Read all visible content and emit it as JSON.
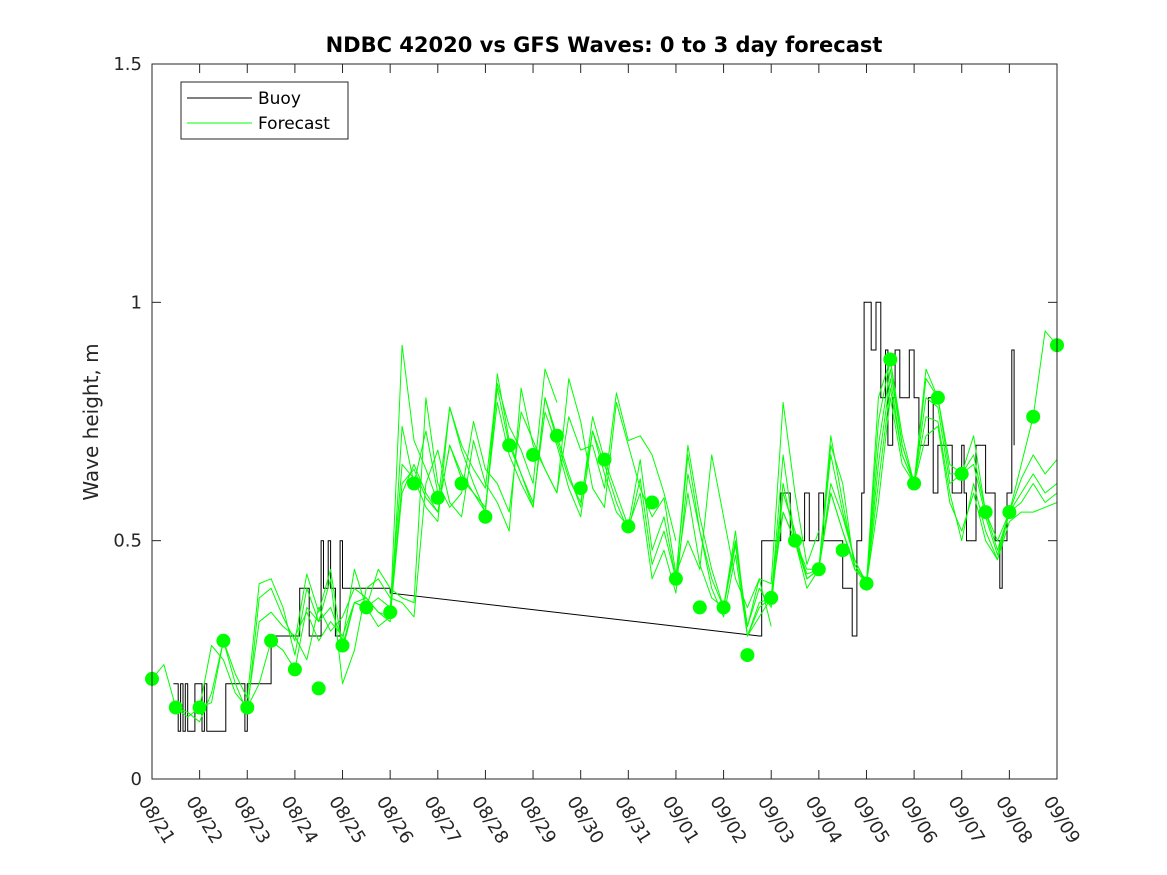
{
  "chart_data": {
    "type": "line",
    "title": "NDBC 42020 vs GFS Waves: 0 to 3 day forecast",
    "xlabel": "",
    "ylabel": "Wave height, m",
    "xlim": [
      0,
      19
    ],
    "ylim": [
      0,
      1.5
    ],
    "x_tick_labels": [
      "08/21",
      "08/22",
      "08/23",
      "08/24",
      "08/25",
      "08/26",
      "08/27",
      "08/28",
      "08/29",
      "08/30",
      "08/31",
      "09/01",
      "09/02",
      "09/03",
      "09/04",
      "09/05",
      "09/06",
      "09/07",
      "09/08",
      "09/09"
    ],
    "y_ticks": [
      0,
      0.5,
      1,
      1.5
    ],
    "y_tick_labels": [
      "0",
      "0.5",
      "1",
      "1.5"
    ],
    "legend": {
      "position": "top-left",
      "entries": [
        "Buoy",
        "Forecast"
      ]
    },
    "colors": {
      "buoy": "#000000",
      "forecast": "#00ff00",
      "axis": "#262626"
    },
    "buoy": {
      "name": "Buoy",
      "x": [
        0.45,
        0.5,
        0.55,
        0.6,
        0.65,
        0.7,
        0.75,
        0.8,
        0.85,
        0.9,
        1.0,
        1.05,
        1.1,
        1.15,
        1.2,
        1.25,
        1.5,
        1.55,
        1.9,
        1.95,
        2.0,
        2.05,
        2.1,
        2.5,
        2.6,
        2.8,
        3.0,
        3.1,
        3.2,
        3.3,
        3.5,
        3.55,
        3.6,
        3.7,
        3.75,
        3.8,
        3.85,
        3.9,
        3.95,
        4.0,
        4.1,
        4.2,
        4.3,
        4.5,
        4.8,
        5.0,
        12.75,
        12.8,
        13.0,
        13.2,
        13.3,
        13.4,
        13.5,
        13.6,
        13.7,
        13.8,
        13.9,
        14.0,
        14.05,
        14.1,
        14.3,
        14.5,
        14.6,
        14.7,
        14.75,
        14.8,
        14.9,
        14.95,
        15.0,
        15.1,
        15.15,
        15.2,
        15.3,
        15.35,
        15.4,
        15.45,
        15.5,
        15.55,
        15.6,
        15.65,
        15.7,
        15.8,
        15.9,
        16.0,
        16.1,
        16.2,
        16.3,
        16.4,
        16.5,
        16.6,
        16.7,
        16.8,
        16.9,
        17.0,
        17.05,
        17.1,
        17.2,
        17.3,
        17.4,
        17.5,
        17.6,
        17.7,
        17.75,
        17.8,
        17.85,
        17.9,
        17.95,
        18.0,
        18.05,
        18.1
      ],
      "values": [
        0.2,
        0.2,
        0.1,
        0.2,
        0.1,
        0.2,
        0.1,
        0.1,
        0.1,
        0.2,
        0.2,
        0.1,
        0.2,
        0.1,
        0.1,
        0.1,
        0.1,
        0.2,
        0.2,
        0.1,
        0.2,
        0.2,
        0.2,
        0.3,
        0.3,
        0.3,
        0.3,
        0.4,
        0.4,
        0.3,
        0.3,
        0.5,
        0.4,
        0.5,
        0.4,
        0.4,
        0.3,
        0.3,
        0.5,
        0.4,
        0.4,
        0.4,
        0.4,
        0.4,
        0.4,
        0.39,
        0.3,
        0.5,
        0.5,
        0.6,
        0.6,
        0.5,
        0.5,
        0.5,
        0.6,
        0.5,
        0.5,
        0.6,
        0.6,
        0.5,
        0.5,
        0.4,
        0.4,
        0.3,
        0.3,
        0.5,
        0.6,
        1.0,
        1.0,
        0.9,
        0.9,
        1.0,
        0.8,
        0.8,
        0.9,
        0.7,
        0.7,
        0.8,
        0.9,
        0.9,
        0.8,
        0.8,
        0.9,
        0.8,
        0.7,
        0.7,
        0.8,
        0.6,
        0.7,
        0.7,
        0.7,
        0.6,
        0.6,
        0.7,
        0.6,
        0.5,
        0.5,
        0.7,
        0.7,
        0.6,
        0.6,
        0.5,
        0.5,
        0.4,
        0.5,
        0.5,
        0.6,
        0.6,
        0.9,
        0.7
      ]
    },
    "forecast_series": [
      {
        "name": "Forecast",
        "x": [
          0.0,
          0.25,
          0.5,
          0.75,
          1.0,
          1.25,
          1.5,
          1.75,
          2.0,
          2.25,
          2.5,
          2.75,
          3.0,
          3.25,
          3.5,
          3.75,
          4.0,
          4.25,
          4.5,
          4.75,
          5.0,
          5.25,
          5.5,
          5.75,
          6.0
        ],
        "values": [
          0.21,
          0.24,
          0.15,
          0.13,
          0.15,
          0.28,
          0.25,
          0.18,
          0.15,
          0.33,
          0.35,
          0.32,
          0.3,
          0.35,
          0.29,
          0.33,
          0.3,
          0.37,
          0.38,
          0.35,
          0.33,
          0.74,
          0.62,
          0.73,
          0.6
        ]
      },
      {
        "name": "Forecast",
        "x": [
          0.5,
          0.75,
          1.0,
          1.25,
          1.5,
          1.75,
          2.0,
          2.25,
          2.5,
          2.75,
          3.0,
          3.25,
          3.5,
          3.75,
          4.0,
          4.25,
          4.5,
          4.75,
          5.0,
          5.25,
          5.5,
          5.75,
          6.0,
          6.25,
          6.5,
          6.75,
          7.0,
          7.25,
          7.5,
          7.75,
          8.0,
          8.25,
          8.5
        ],
        "values": [
          0.15,
          0.14,
          0.12,
          0.18,
          0.29,
          0.22,
          0.17,
          0.41,
          0.42,
          0.36,
          0.26,
          0.4,
          0.33,
          0.36,
          0.29,
          0.44,
          0.36,
          0.32,
          0.34,
          0.91,
          0.71,
          0.65,
          0.58,
          0.78,
          0.7,
          0.65,
          0.61,
          0.83,
          0.74,
          0.69,
          0.62,
          0.86,
          0.79
        ]
      },
      {
        "name": "Forecast",
        "x": [
          1.0,
          1.25,
          1.5,
          1.75,
          2.0,
          2.25,
          2.5,
          2.75,
          3.0,
          3.25,
          3.5,
          3.75,
          4.0,
          4.25,
          4.5,
          4.75,
          5.0,
          5.25,
          5.5,
          5.75,
          6.0,
          6.25,
          6.5,
          6.75,
          7.0,
          7.25,
          7.5,
          7.75,
          8.0,
          8.25,
          8.5,
          8.75,
          9.0,
          9.25,
          9.5,
          9.75,
          10.0,
          10.25,
          10.5,
          10.75,
          11.0
        ],
        "values": [
          0.15,
          0.16,
          0.29,
          0.2,
          0.14,
          0.38,
          0.4,
          0.34,
          0.29,
          0.43,
          0.35,
          0.44,
          0.27,
          0.37,
          0.36,
          0.44,
          0.4,
          0.38,
          0.37,
          0.8,
          0.62,
          0.57,
          0.6,
          0.75,
          0.65,
          0.62,
          0.56,
          0.77,
          0.71,
          0.65,
          0.6,
          0.76,
          0.69,
          0.7,
          0.61,
          0.81,
          0.71,
          0.72,
          0.68,
          0.6,
          0.5
        ]
      },
      {
        "name": "Forecast",
        "x": [
          2.0,
          2.25,
          2.5,
          2.75,
          3.0,
          3.25,
          3.5,
          3.75,
          4.0,
          4.25,
          4.5,
          4.75,
          5.0,
          5.25,
          5.5,
          5.75,
          6.0,
          6.25,
          6.5,
          6.75,
          7.0,
          7.25,
          7.5,
          7.75,
          8.0,
          8.25,
          8.5,
          8.75,
          9.0,
          9.25,
          9.5,
          9.75,
          10.0,
          10.25,
          10.5,
          10.75,
          11.0,
          11.25,
          11.5,
          11.75,
          12.0,
          12.25,
          12.5,
          12.75,
          13.0
        ],
        "values": [
          0.15,
          0.2,
          0.29,
          0.27,
          0.23,
          0.36,
          0.33,
          0.42,
          0.2,
          0.27,
          0.4,
          0.42,
          0.38,
          0.37,
          0.34,
          0.62,
          0.69,
          0.58,
          0.55,
          0.71,
          0.62,
          0.58,
          0.52,
          0.82,
          0.7,
          0.65,
          0.6,
          0.84,
          0.75,
          0.61,
          0.57,
          0.79,
          0.7,
          0.61,
          0.55,
          0.59,
          0.43,
          0.5,
          0.44,
          0.68,
          0.55,
          0.42,
          0.36,
          0.42,
          0.32
        ]
      },
      {
        "name": "Forecast",
        "x": [
          3.0,
          3.25,
          3.5,
          3.75,
          4.0,
          4.25,
          4.5,
          4.75,
          5.0,
          5.25,
          5.5,
          5.75,
          6.0,
          6.25,
          6.5,
          6.75,
          7.0,
          7.25,
          7.5,
          7.75,
          8.0,
          8.25,
          8.5,
          8.75,
          9.0,
          9.25,
          9.5,
          9.75,
          10.0,
          10.25,
          10.5,
          10.75,
          11.0,
          11.25,
          11.5,
          11.75,
          12.0,
          12.25,
          12.5,
          12.75,
          13.0,
          13.25,
          13.5,
          13.75,
          14.0
        ],
        "values": [
          0.3,
          0.25,
          0.36,
          0.31,
          0.34,
          0.4,
          0.38,
          0.35,
          0.34,
          0.6,
          0.66,
          0.6,
          0.56,
          0.7,
          0.63,
          0.6,
          0.57,
          0.79,
          0.68,
          0.62,
          0.57,
          0.8,
          0.71,
          0.63,
          0.58,
          0.73,
          0.64,
          0.56,
          0.53,
          0.6,
          0.42,
          0.48,
          0.39,
          0.64,
          0.52,
          0.42,
          0.36,
          0.5,
          0.32,
          0.42,
          0.41,
          0.79,
          0.6,
          0.45,
          0.52
        ]
      },
      {
        "name": "Forecast",
        "x": [
          4.0,
          4.25,
          4.5,
          4.75,
          5.0,
          5.25,
          5.5,
          5.75,
          6.0,
          6.25,
          6.5,
          6.75,
          7.0,
          7.25,
          7.5,
          7.75,
          8.0,
          8.25,
          8.5,
          8.75,
          9.0,
          9.25,
          9.5,
          9.75,
          10.0,
          10.25,
          10.5,
          10.75,
          11.0,
          11.25,
          11.5,
          11.75,
          12.0,
          12.25,
          12.5,
          12.75,
          13.0,
          13.25,
          13.5,
          13.75,
          14.0,
          14.25,
          14.5,
          14.75,
          15.0
        ],
        "values": [
          0.28,
          0.37,
          0.36,
          0.38,
          0.36,
          0.66,
          0.63,
          0.57,
          0.54,
          0.78,
          0.69,
          0.62,
          0.56,
          0.85,
          0.71,
          0.64,
          0.58,
          0.77,
          0.7,
          0.61,
          0.55,
          0.73,
          0.66,
          0.58,
          0.52,
          0.63,
          0.45,
          0.52,
          0.42,
          0.68,
          0.52,
          0.4,
          0.34,
          0.47,
          0.3,
          0.37,
          0.38,
          0.56,
          0.5,
          0.4,
          0.44,
          0.6,
          0.52,
          0.44,
          0.42
        ]
      },
      {
        "name": "Forecast",
        "x": [
          5.0,
          5.25,
          5.5,
          5.75,
          6.0,
          6.25,
          6.5,
          6.75,
          7.0,
          7.25,
          7.5,
          7.75,
          8.0,
          8.25,
          8.5,
          8.75,
          9.0,
          9.25,
          9.5,
          9.75,
          10.0,
          10.25,
          10.5,
          10.75,
          11.0,
          11.25,
          11.5,
          11.75,
          12.0,
          12.25,
          12.5,
          12.75,
          13.0,
          13.25,
          13.5,
          13.75,
          14.0,
          14.25,
          14.5,
          14.75,
          15.0,
          15.25,
          15.5,
          15.75,
          16.0
        ],
        "values": [
          0.35,
          0.62,
          0.65,
          0.59,
          0.56,
          0.7,
          0.64,
          0.6,
          0.56,
          0.82,
          0.7,
          0.64,
          0.57,
          0.8,
          0.72,
          0.64,
          0.57,
          0.76,
          0.67,
          0.6,
          0.53,
          0.67,
          0.48,
          0.55,
          0.42,
          0.7,
          0.55,
          0.44,
          0.36,
          0.49,
          0.32,
          0.4,
          0.36,
          0.6,
          0.52,
          0.42,
          0.44,
          0.7,
          0.62,
          0.44,
          0.41,
          0.8,
          0.88,
          0.72,
          0.62
        ]
      },
      {
        "name": "Forecast",
        "x": [
          11.0,
          11.25,
          11.5,
          11.75,
          12.0,
          12.25,
          12.5,
          12.75,
          13.0,
          13.25,
          13.5,
          13.75,
          14.0,
          14.25,
          14.5,
          14.75,
          15.0,
          15.25,
          15.5,
          15.75,
          16.0,
          16.25,
          16.5,
          16.75,
          17.0,
          17.25,
          17.5,
          17.75,
          18.0,
          18.25,
          18.5,
          18.75,
          19.0
        ],
        "values": [
          0.42,
          0.6,
          0.45,
          0.38,
          0.36,
          0.52,
          0.3,
          0.36,
          0.38,
          0.68,
          0.5,
          0.42,
          0.44,
          0.72,
          0.58,
          0.45,
          0.41,
          0.75,
          0.88,
          0.7,
          0.62,
          0.86,
          0.8,
          0.66,
          0.64,
          0.72,
          0.56,
          0.5,
          0.56,
          0.66,
          0.76,
          0.94,
          0.91
        ]
      },
      {
        "name": "Forecast",
        "x": [
          12.0,
          12.25,
          12.5,
          12.75,
          13.0,
          13.25,
          13.5,
          13.75,
          14.0,
          14.25,
          14.5,
          14.75,
          15.0,
          15.25,
          15.5,
          15.75,
          16.0,
          16.25,
          16.5,
          16.75,
          17.0,
          17.25,
          17.5,
          17.75,
          18.0,
          18.25,
          18.5,
          18.75,
          19.0
        ],
        "values": [
          0.36,
          0.5,
          0.3,
          0.34,
          0.38,
          0.62,
          0.5,
          0.43,
          0.44,
          0.68,
          0.56,
          0.46,
          0.41,
          0.7,
          0.86,
          0.7,
          0.62,
          0.84,
          0.8,
          0.64,
          0.64,
          0.68,
          0.56,
          0.48,
          0.56,
          0.63,
          0.68,
          0.64,
          0.67
        ]
      },
      {
        "name": "Forecast",
        "x": [
          13.0,
          13.25,
          13.5,
          13.75,
          14.0,
          14.25,
          14.5,
          14.75,
          15.0,
          15.25,
          15.5,
          15.75,
          16.0,
          16.25,
          16.5,
          16.75,
          17.0,
          17.25,
          17.5,
          17.75,
          18.0,
          18.25,
          18.5,
          18.75,
          19.0
        ],
        "values": [
          0.38,
          0.56,
          0.5,
          0.44,
          0.44,
          0.62,
          0.55,
          0.46,
          0.41,
          0.66,
          0.84,
          0.68,
          0.62,
          0.8,
          0.78,
          0.62,
          0.64,
          0.66,
          0.55,
          0.47,
          0.56,
          0.6,
          0.64,
          0.6,
          0.62
        ]
      },
      {
        "name": "Forecast",
        "x": [
          14.0,
          14.25,
          14.5,
          14.75,
          15.0,
          15.25,
          15.5,
          15.75,
          16.0,
          16.25,
          16.5,
          16.75,
          17.0,
          17.25,
          17.5,
          17.75,
          18.0,
          18.25,
          18.5,
          18.75,
          19.0
        ],
        "values": [
          0.44,
          0.6,
          0.52,
          0.45,
          0.41,
          0.62,
          0.82,
          0.68,
          0.62,
          0.76,
          0.75,
          0.6,
          0.5,
          0.62,
          0.52,
          0.46,
          0.56,
          0.58,
          0.62,
          0.58,
          0.6
        ]
      },
      {
        "name": "Forecast",
        "x": [
          15.0,
          15.25,
          15.5,
          15.75,
          16.0,
          16.25,
          16.5,
          16.75,
          17.0,
          17.25,
          17.5,
          17.75,
          18.0,
          18.25,
          18.5,
          18.75,
          19.0
        ],
        "values": [
          0.41,
          0.58,
          0.8,
          0.66,
          0.62,
          0.72,
          0.74,
          0.58,
          0.52,
          0.6,
          0.5,
          0.46,
          0.54,
          0.56,
          0.56,
          0.57,
          0.58
        ]
      }
    ],
    "forecast_markers": {
      "x": [
        0.0,
        0.5,
        1.0,
        1.5,
        2.0,
        2.5,
        3.0,
        3.5,
        4.0,
        4.5,
        5.0,
        5.5,
        6.0,
        6.5,
        7.0,
        7.5,
        8.0,
        8.5,
        9.0,
        9.5,
        10.0,
        10.5,
        11.0,
        11.5,
        12.0,
        12.5,
        13.0,
        13.5,
        14.0,
        14.5,
        15.0,
        15.5,
        16.0,
        16.5,
        17.0,
        17.5,
        18.0,
        18.5,
        19.0
      ],
      "values": [
        0.21,
        0.15,
        0.15,
        0.29,
        0.15,
        0.29,
        0.23,
        0.19,
        0.28,
        0.36,
        0.35,
        0.62,
        0.59,
        0.62,
        0.55,
        0.7,
        0.68,
        0.72,
        0.61,
        0.67,
        0.53,
        0.58,
        0.42,
        0.36,
        0.36,
        0.26,
        0.38,
        0.5,
        0.44,
        0.48,
        0.41,
        0.88,
        0.62,
        0.8,
        0.64,
        0.56,
        0.56,
        0.76,
        0.91
      ]
    }
  }
}
